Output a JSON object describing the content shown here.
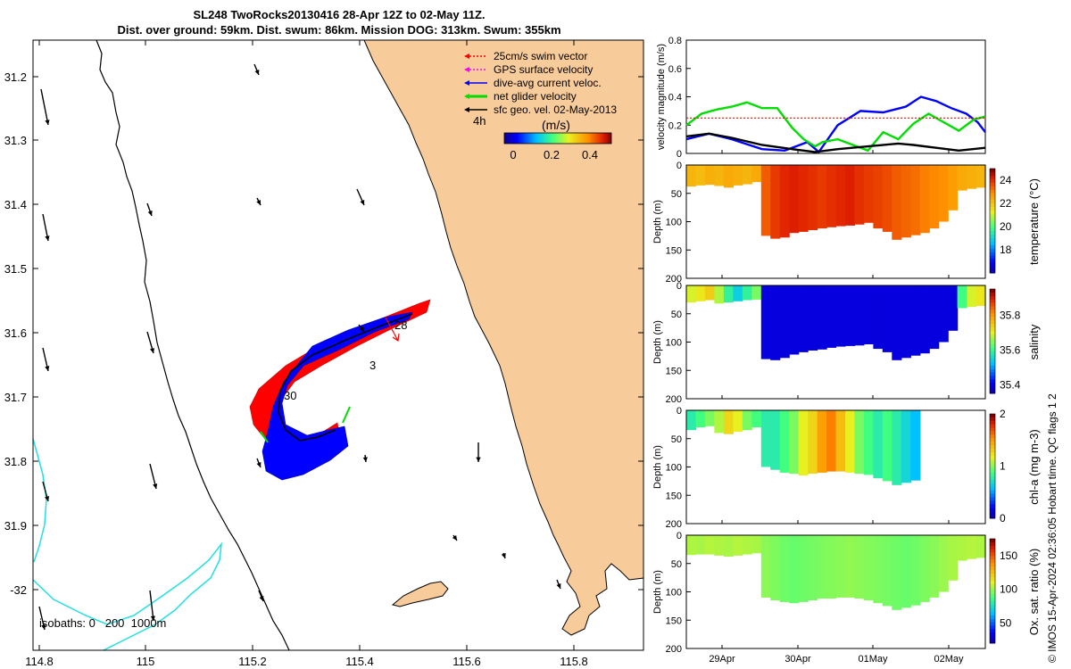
{
  "header": {
    "title_line1": "SL248 TwoRocks20130416 28-Apr 12Z to 02-May 11Z.",
    "title_line2": "Dist. over ground: 59km. Dist. swum: 86km. Mission DOG: 313km. Swum: 355km"
  },
  "credit": "© IMOS 15-Apr-2024 02:36:05 Hobart time. QC flags 1  2",
  "map": {
    "x_ticks": [
      "114.8",
      "115",
      "115.2",
      "115.4",
      "115.6",
      "115.8"
    ],
    "y_ticks": [
      "31.2",
      "31.3",
      "31.4",
      "31.5",
      "31.6",
      "31.7",
      "31.8",
      "31.9",
      "-32"
    ],
    "isobaths_label": "isobaths: 0   200  1000m",
    "legend": [
      {
        "label": "25cm/s swim vector",
        "color": "#ff0000"
      },
      {
        "label": "GPS surface velocity",
        "color": "#ff00ff"
      },
      {
        "label": "dive-avg current veloc.",
        "color": "#0000ff"
      },
      {
        "label": "net glider velocity",
        "color": "#00dd00"
      },
      {
        "label": "sfc geo. vel. 02-May-2013",
        "color": "#000000"
      }
    ],
    "time_step_label": "4h",
    "colorbar": {
      "unit": "(m/s)",
      "ticks": [
        "0",
        "0.2",
        "0.4"
      ]
    },
    "day_labels": [
      "28",
      "30",
      "3"
    ],
    "colors": {
      "land": "#f8cb9a",
      "coast": "#000000",
      "isobath200": "#000000",
      "isobath1000": "#22e0e0"
    }
  },
  "panels": {
    "time_ticks": [
      "29Apr",
      "30Apr",
      "01May",
      "02May"
    ],
    "depth_ticks": [
      "0",
      "50",
      "100",
      "150",
      "200"
    ],
    "depth_label": "Depth (m)"
  },
  "chart_data": [
    {
      "type": "line",
      "ylabel": "velocity magnitude (m/s)",
      "ylim": [
        0,
        0.8
      ],
      "yticks": [
        "0",
        "0.2",
        "0.4",
        "0.6",
        "0.8"
      ],
      "x_unit": "days since 28-Apr 12Z",
      "series": [
        {
          "color": "#0000ff",
          "x": [
            0,
            0.3,
            0.6,
            1.0,
            1.3,
            1.6,
            1.75,
            2.0,
            2.3,
            2.6,
            2.9,
            3.1,
            3.3,
            3.5,
            3.7,
            3.85,
            3.95
          ],
          "y": [
            0.1,
            0.14,
            0.1,
            0.03,
            0.02,
            0.08,
            0.01,
            0.2,
            0.3,
            0.29,
            0.33,
            0.4,
            0.37,
            0.32,
            0.28,
            0.22,
            0.15
          ]
        },
        {
          "color": "#00dd00",
          "x": [
            0,
            0.2,
            0.4,
            0.6,
            0.8,
            1.0,
            1.2,
            1.4,
            1.55,
            1.7,
            1.8,
            2.0,
            2.2,
            2.4,
            2.6,
            2.8,
            3.0,
            3.2,
            3.4,
            3.6,
            3.8,
            3.95
          ],
          "y": [
            0.2,
            0.28,
            0.31,
            0.33,
            0.36,
            0.32,
            0.32,
            0.18,
            0.1,
            0.05,
            0.08,
            0.1,
            0.06,
            0.02,
            0.15,
            0.1,
            0.21,
            0.28,
            0.22,
            0.16,
            0.24,
            0.26
          ]
        },
        {
          "color": "#ff0000",
          "x": [
            0,
            3.95
          ],
          "y": [
            0.25,
            0.25
          ]
        },
        {
          "color": "#000000",
          "x": [
            0,
            0.3,
            0.6,
            1.0,
            1.4,
            1.7,
            2.0,
            2.4,
            2.8,
            3.0,
            3.3,
            3.6,
            3.95
          ],
          "y": [
            0.12,
            0.14,
            0.11,
            0.06,
            0.03,
            0.01,
            0.03,
            0.05,
            0.07,
            0.06,
            0.04,
            0.02,
            0.04
          ]
        }
      ]
    },
    {
      "type": "heatmap",
      "ylabel": "Depth (m)",
      "colorbar_label": "temperature (°C)",
      "colorbar_ticks": [
        "18",
        "20",
        "22",
        "24"
      ],
      "clim": [
        16,
        25
      ],
      "bottom_profile_m": [
        38,
        36,
        35,
        37,
        40,
        36,
        34,
        30,
        125,
        130,
        128,
        120,
        118,
        115,
        112,
        110,
        108,
        107,
        105,
        102,
        112,
        118,
        132,
        128,
        124,
        120,
        112,
        100,
        80,
        45,
        42,
        40
      ],
      "values_c": [
        22.4,
        22.3,
        22.5,
        22.4,
        22.6,
        22.5,
        22.4,
        22.6,
        23.6,
        24.0,
        24.2,
        24.3,
        24.2,
        24.1,
        24.0,
        24.1,
        24.2,
        24.3,
        24.1,
        24.0,
        23.9,
        23.8,
        23.6,
        23.5,
        23.4,
        23.2,
        23.1,
        23.0,
        22.8,
        22.6,
        22.5,
        22.4
      ]
    },
    {
      "type": "heatmap",
      "ylabel": "Depth (m)",
      "colorbar_label": "salinity",
      "colorbar_ticks": [
        "35.4",
        "35.6",
        "35.8"
      ],
      "clim": [
        35.35,
        35.95
      ],
      "bottom_profile_m": [
        30,
        28,
        26,
        32,
        30,
        28,
        26,
        25,
        130,
        132,
        128,
        122,
        118,
        115,
        113,
        110,
        108,
        107,
        106,
        104,
        112,
        118,
        132,
        128,
        124,
        120,
        112,
        100,
        80,
        40,
        38,
        36
      ],
      "values": [
        35.7,
        35.72,
        35.75,
        35.68,
        35.6,
        35.55,
        35.6,
        35.65,
        35.4,
        35.4,
        35.4,
        35.4,
        35.4,
        35.4,
        35.4,
        35.4,
        35.4,
        35.4,
        35.4,
        35.4,
        35.4,
        35.4,
        35.4,
        35.4,
        35.4,
        35.4,
        35.4,
        35.4,
        35.4,
        35.62,
        35.7,
        35.72
      ]
    },
    {
      "type": "heatmap",
      "ylabel": "Depth (m)",
      "colorbar_label": "chl-a (mg m-3)",
      "colorbar_ticks": [
        "0",
        "1",
        "2"
      ],
      "clim": [
        0,
        2
      ],
      "bottom_profile_m": [
        35,
        30,
        28,
        40,
        42,
        38,
        35,
        30,
        100,
        105,
        110,
        112,
        115,
        112,
        110,
        108,
        108,
        110,
        112,
        114,
        120,
        125,
        132,
        128,
        124,
        0,
        0,
        0,
        0,
        0,
        0,
        0
      ],
      "values": [
        0.8,
        0.9,
        1.0,
        1.1,
        1.3,
        1.2,
        1.0,
        0.9,
        0.8,
        0.8,
        0.9,
        1.0,
        1.2,
        1.3,
        1.5,
        1.6,
        1.4,
        1.2,
        1.0,
        0.9,
        0.8,
        0.9,
        0.8,
        0.7,
        0.6,
        0,
        0,
        0,
        0,
        0,
        0,
        0
      ]
    },
    {
      "type": "heatmap",
      "ylabel": "Depth (m)",
      "colorbar_label": "Ox. sat. ratio (%)",
      "colorbar_ticks": [
        "50",
        "100",
        "150"
      ],
      "clim": [
        20,
        175
      ],
      "bottom_profile_m": [
        35,
        34,
        34,
        36,
        38,
        36,
        34,
        32,
        110,
        115,
        118,
        120,
        118,
        115,
        112,
        112,
        110,
        110,
        112,
        115,
        120,
        125,
        132,
        128,
        124,
        118,
        110,
        100,
        80,
        45,
        42,
        40
      ],
      "values": [
        105,
        104,
        106,
        105,
        104,
        106,
        105,
        104,
        100,
        98,
        96,
        95,
        96,
        97,
        98,
        99,
        100,
        101,
        100,
        99,
        98,
        97,
        96,
        95,
        96,
        98,
        100,
        102,
        104,
        105,
        106,
        105
      ]
    }
  ]
}
